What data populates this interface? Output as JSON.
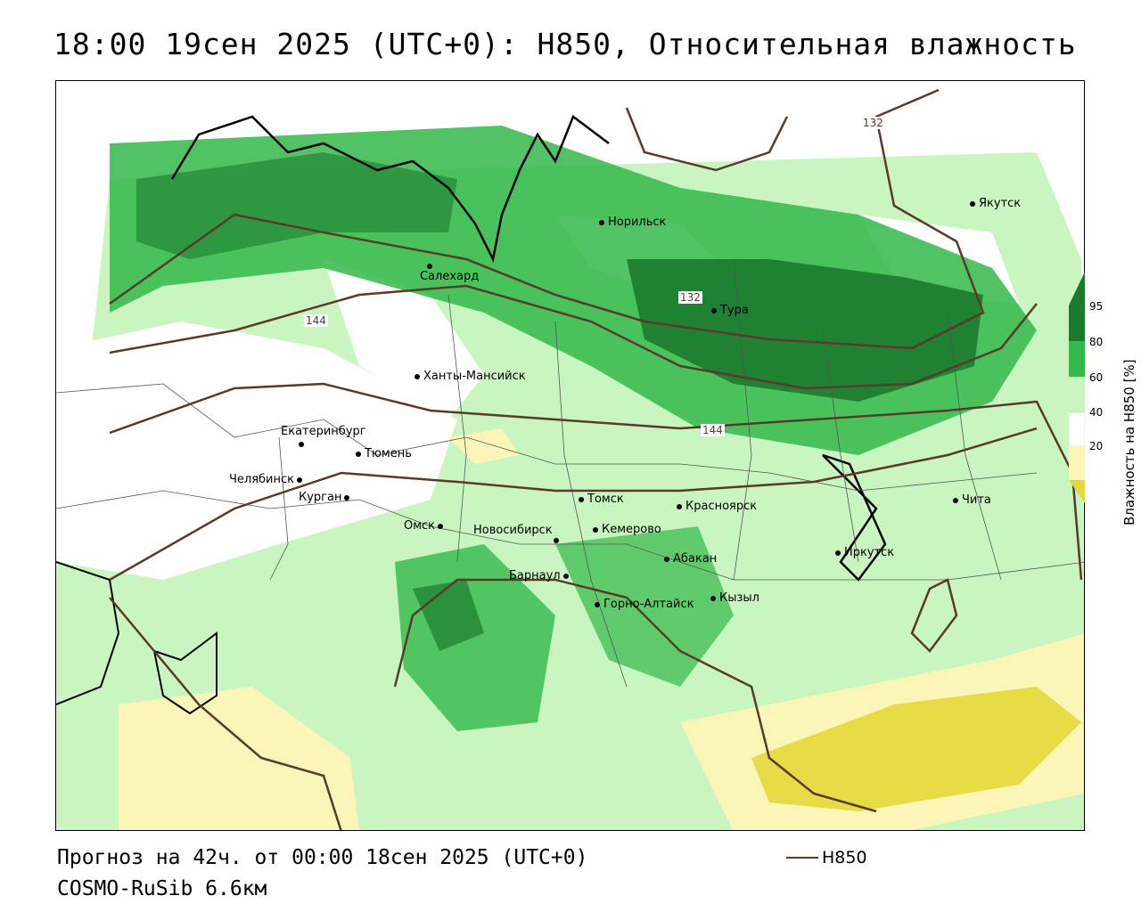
{
  "title": "18:00 19сен 2025 (UTC+0): H850, Относительная влажность",
  "footer": {
    "forecast": "Прогноз на 42ч. от 00:00 18сен 2025 (UTC+0)",
    "model": "COSMO-RuSib 6.6км",
    "legend_label": "H850"
  },
  "colorbar": {
    "title": "Влажность на H850 [%]",
    "ticks": [
      "95",
      "80",
      "60",
      "40",
      "20"
    ]
  },
  "contour_labels": [
    "132",
    "132",
    "144",
    "144"
  ],
  "cities": [
    {
      "name": "Якутск"
    },
    {
      "name": "Норильск"
    },
    {
      "name": "Салехард"
    },
    {
      "name": "Тура"
    },
    {
      "name": "Ханты-Мансийск"
    },
    {
      "name": "Екатеринбург"
    },
    {
      "name": "Тюмень"
    },
    {
      "name": "Челябинск"
    },
    {
      "name": "Курган"
    },
    {
      "name": "Томск"
    },
    {
      "name": "Красноярск"
    },
    {
      "name": "Чита"
    },
    {
      "name": "Омск"
    },
    {
      "name": "Новосибирск"
    },
    {
      "name": "Кемерово"
    },
    {
      "name": "Абакан"
    },
    {
      "name": "Иркутск"
    },
    {
      "name": "Барнаул"
    },
    {
      "name": "Кызыл"
    },
    {
      "name": "Горно-Алтайск"
    }
  ],
  "colors": {
    "rh_95": "#1b7a2e",
    "rh_80": "#33b94a",
    "rh_60": "#c8f5c0",
    "rh_40": "#fbf6b8",
    "rh_20": "#e4d83a",
    "contour": "#5a3a2a"
  }
}
